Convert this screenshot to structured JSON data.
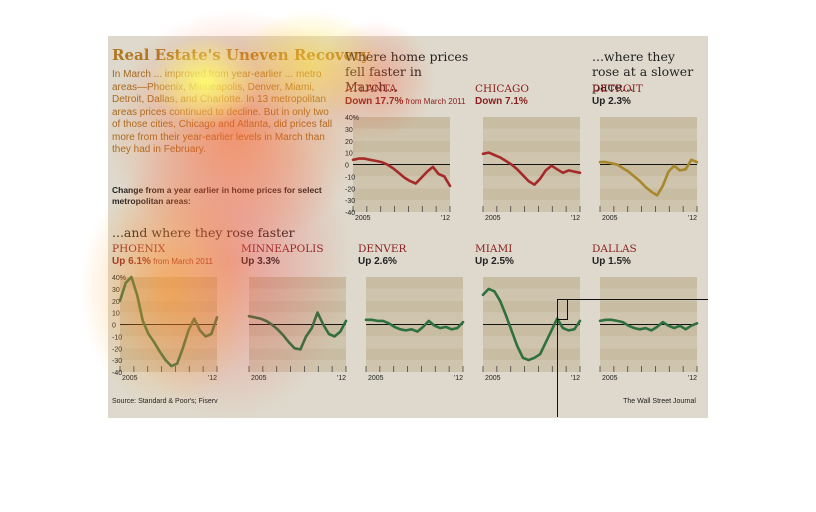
{
  "intro": {
    "title": "Real Estate's Uneven Recovery",
    "body": "In March ... improved from year-earlier ... metro areas—Phoenix, Minneapolis, Denver, Miami, Detroit, Dallas, and Charlotte. In 13 metropolitan areas prices continued to decline. But in only two of those cities, Chicago and Atlanta, did prices fall more from their year-earlier levels in March than they had in February.",
    "note": "Change from a year earlier in home prices for select metropolitan areas:"
  },
  "headers": {
    "fell": "Where home prices fell faster in March...",
    "slower": "...where they rose at a slower pace...",
    "faster": "...and where they rose faster"
  },
  "footer": {
    "source": "Source: Standard & Poor's; Fiserv",
    "credit": "The Wall Street Journal"
  },
  "colors": {
    "fell": "#a52a2a",
    "slower": "#a8882a",
    "faster": "#2e7040",
    "panel": "#ded9cc"
  },
  "chart_data": [
    {
      "type": "line",
      "title": "ATLANTA",
      "change": "Down 17.7%",
      "note": "from March 2011",
      "group": "fell",
      "x_ticks": [
        "2005",
        "'12"
      ],
      "y_ticks": [
        "40%",
        "30",
        "20",
        "10",
        "0",
        "-10",
        "-20",
        "-30",
        "-40"
      ],
      "ylim": [
        -40,
        40
      ],
      "values": [
        4,
        5,
        5,
        4,
        3,
        2,
        0,
        -3,
        -7,
        -11,
        -14,
        -16,
        -11,
        -6,
        -2,
        -8,
        -10,
        -18
      ]
    },
    {
      "type": "line",
      "title": "CHICAGO",
      "change": "Down 7.1%",
      "note": "",
      "group": "fell",
      "x_ticks": [
        "2005",
        "'12"
      ],
      "ylim": [
        -40,
        40
      ],
      "values": [
        9,
        10,
        8,
        6,
        3,
        0,
        -4,
        -9,
        -14,
        -17,
        -12,
        -5,
        -1,
        -4,
        -7,
        -5,
        -6,
        -7
      ]
    },
    {
      "type": "line",
      "title": "DETROIT",
      "change": "Up 2.3%",
      "note": "",
      "group": "slower",
      "x_ticks": [
        "2005",
        "'12"
      ],
      "ylim": [
        -40,
        40
      ],
      "values": [
        2,
        2,
        1,
        0,
        -3,
        -6,
        -10,
        -14,
        -19,
        -23,
        -26,
        -18,
        -6,
        -1,
        -5,
        -4,
        4,
        2
      ]
    },
    {
      "type": "line",
      "title": "PHOENIX",
      "change": "Up 6.1%",
      "note": "from March 2011",
      "group": "faster",
      "x_ticks": [
        "2005",
        "'12"
      ],
      "y_ticks": [
        "40%",
        "30",
        "20",
        "10",
        "0",
        "-10",
        "-20",
        "-30",
        "-40"
      ],
      "ylim": [
        -40,
        40
      ],
      "values": [
        20,
        35,
        40,
        25,
        3,
        -8,
        -15,
        -23,
        -30,
        -35,
        -33,
        -20,
        -5,
        5,
        -5,
        -10,
        -8,
        6
      ]
    },
    {
      "type": "line",
      "title": "MINNEAPOLIS",
      "change": "Up 3.3%",
      "note": "",
      "group": "faster",
      "x_ticks": [
        "2005",
        "'12"
      ],
      "ylim": [
        -40,
        40
      ],
      "values": [
        7,
        6,
        5,
        3,
        0,
        -4,
        -9,
        -15,
        -20,
        -21,
        -10,
        -3,
        10,
        0,
        -8,
        -10,
        -6,
        3
      ]
    },
    {
      "type": "line",
      "title": "DENVER",
      "change": "Up 2.6%",
      "note": "",
      "group": "faster",
      "x_ticks": [
        "2005",
        "'12"
      ],
      "ylim": [
        -40,
        40
      ],
      "values": [
        4,
        4,
        3,
        3,
        1,
        -2,
        -4,
        -5,
        -4,
        -6,
        -2,
        3,
        -1,
        -3,
        -2,
        -4,
        -3,
        2
      ]
    },
    {
      "type": "line",
      "title": "MIAMI",
      "change": "Up 2.5%",
      "note": "",
      "group": "faster",
      "x_ticks": [
        "2005",
        "'12"
      ],
      "ylim": [
        -40,
        40
      ],
      "values": [
        25,
        30,
        28,
        20,
        8,
        -5,
        -18,
        -28,
        -30,
        -28,
        -25,
        -15,
        -5,
        5,
        -3,
        -5,
        -4,
        3
      ]
    },
    {
      "type": "line",
      "title": "DALLAS",
      "change": "Up 1.5%",
      "note": "",
      "group": "faster",
      "x_ticks": [
        "2005",
        "'12"
      ],
      "ylim": [
        -40,
        40
      ],
      "values": [
        3,
        4,
        4,
        3,
        2,
        -1,
        -3,
        -4,
        -3,
        -5,
        -2,
        2,
        -1,
        -3,
        -1,
        -4,
        -1,
        1
      ]
    }
  ]
}
